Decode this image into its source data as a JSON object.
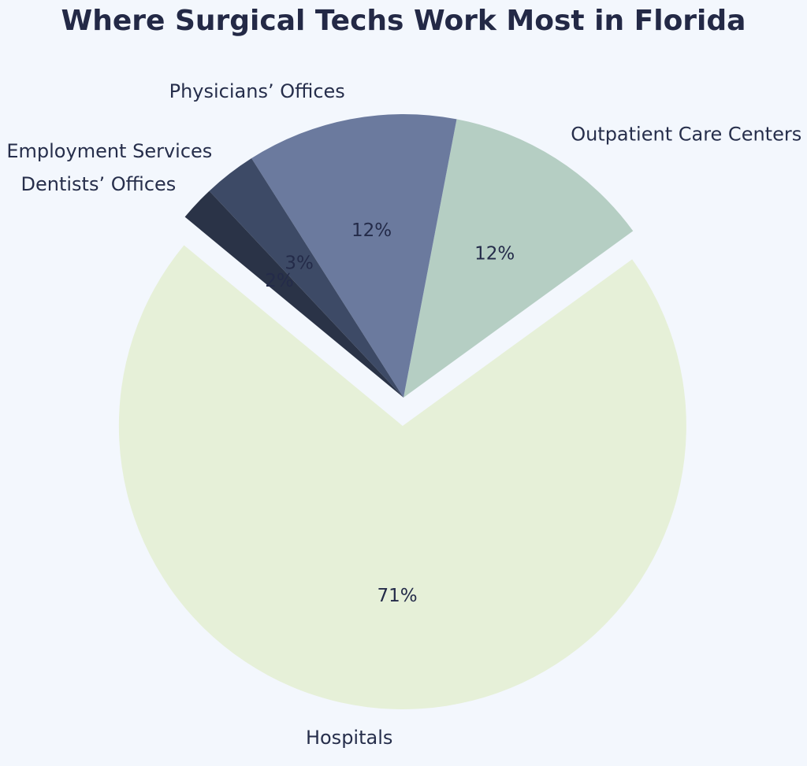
{
  "page": {
    "background": "#f3f7fd"
  },
  "chart_data": {
    "type": "pie",
    "title": "Where Surgical Techs Work Most in Florida",
    "title_color": "#232946",
    "label_color": "#262e4b",
    "pct_color": "#242b49",
    "background": "#f3f7fd",
    "startangle": 36,
    "counterclock": true,
    "pctdistance": 0.6,
    "labeldistance": 1.1,
    "legend": "none",
    "slices": [
      {
        "label": "Outpatient Care Centers",
        "value": 12,
        "pct_label": "12%",
        "color": "#b5cec3",
        "explode": 0
      },
      {
        "label": "Physicians’ Offices",
        "value": 12,
        "pct_label": "12%",
        "color": "#6b7a9e",
        "explode": 0
      },
      {
        "label": "Employment Services",
        "value": 3,
        "pct_label": "3%",
        "color": "#3d4a66",
        "explode": 0
      },
      {
        "label": "Dentists’ Offices",
        "value": 2,
        "pct_label": "2%",
        "color": "#2a3347",
        "explode": 0
      },
      {
        "label": "Hospitals",
        "value": 71,
        "pct_label": "71%",
        "color": "#e6f0d8",
        "explode": 0.1
      }
    ]
  }
}
